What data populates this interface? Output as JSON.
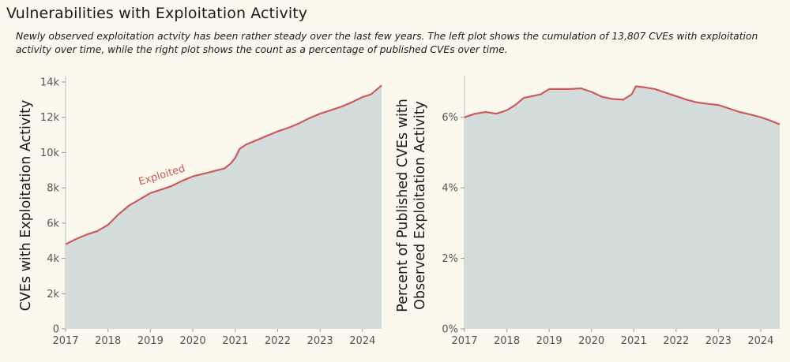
{
  "header": {
    "title": "Vulnerabilities with Exploitation Activity",
    "subtitle": "Newly observed exploitation actvity has been rather steady over the last few years. The left plot shows the cumulation of 13,807 CVEs with exploitation activity over time, while the right plot shows the count as a percentage of published CVEs over time."
  },
  "colors": {
    "line": "#cf5a5e",
    "fill": "#d5dcdc",
    "background": "#fbf8ee"
  },
  "chart_data": [
    {
      "type": "area",
      "ylabel": "CVEs with Exploitation Activity",
      "xlim": [
        2017,
        2024.45
      ],
      "ylim": [
        0,
        14000
      ],
      "x_ticks": [
        2017,
        2018,
        2019,
        2020,
        2021,
        2022,
        2023,
        2024
      ],
      "x_tick_labels": [
        "2017",
        "2018",
        "2019",
        "2020",
        "2021",
        "2022",
        "2023",
        "2024"
      ],
      "y_ticks": [
        0,
        2000,
        4000,
        6000,
        8000,
        10000,
        12000,
        14000
      ],
      "y_tick_labels": [
        "0",
        "2k",
        "4k",
        "6k",
        "8k",
        "10k",
        "12k",
        "14k"
      ],
      "annotation": {
        "text": "Exploited",
        "x": 2018.75,
        "y": 8150
      },
      "series": [
        {
          "x": [
            2017.0,
            2017.25,
            2017.5,
            2017.75,
            2018.0,
            2018.25,
            2018.5,
            2018.75,
            2019.0,
            2019.25,
            2019.5,
            2019.75,
            2020.0,
            2020.25,
            2020.5,
            2020.75,
            2020.9,
            2021.0,
            2021.1,
            2021.25,
            2021.5,
            2021.75,
            2022.0,
            2022.25,
            2022.5,
            2022.75,
            2023.0,
            2023.25,
            2023.5,
            2023.75,
            2024.0,
            2024.2,
            2024.45
          ],
          "y": [
            4800,
            5100,
            5350,
            5550,
            5900,
            6500,
            7000,
            7350,
            7700,
            7900,
            8100,
            8400,
            8650,
            8800,
            8950,
            9100,
            9400,
            9700,
            10200,
            10450,
            10700,
            10950,
            11200,
            11400,
            11650,
            11950,
            12200,
            12400,
            12600,
            12850,
            13150,
            13300,
            13807
          ]
        }
      ]
    },
    {
      "type": "area",
      "ylabel": "Percent of Published CVEs with Observed Exploitation Activity",
      "xlim": [
        2017,
        2024.45
      ],
      "ylim": [
        0,
        7
      ],
      "x_ticks": [
        2017,
        2018,
        2019,
        2020,
        2021,
        2022,
        2023,
        2024
      ],
      "x_tick_labels": [
        "2017",
        "2018",
        "2019",
        "2020",
        "2021",
        "2022",
        "2023",
        "2024"
      ],
      "y_ticks": [
        0,
        2,
        4,
        6
      ],
      "y_tick_labels": [
        "0%",
        "2%",
        "4%",
        "6%"
      ],
      "series": [
        {
          "x": [
            2017.0,
            2017.25,
            2017.5,
            2017.75,
            2018.0,
            2018.2,
            2018.4,
            2018.6,
            2018.8,
            2019.0,
            2019.2,
            2019.5,
            2019.75,
            2020.0,
            2020.25,
            2020.5,
            2020.75,
            2020.95,
            2021.05,
            2021.25,
            2021.5,
            2021.75,
            2022.0,
            2022.25,
            2022.5,
            2022.75,
            2023.0,
            2023.25,
            2023.5,
            2023.75,
            2024.0,
            2024.2,
            2024.45
          ],
          "y": [
            6.0,
            6.1,
            6.15,
            6.1,
            6.2,
            6.35,
            6.55,
            6.6,
            6.65,
            6.8,
            6.8,
            6.8,
            6.82,
            6.72,
            6.58,
            6.52,
            6.5,
            6.65,
            6.88,
            6.85,
            6.8,
            6.7,
            6.6,
            6.5,
            6.42,
            6.38,
            6.35,
            6.25,
            6.15,
            6.08,
            6.0,
            5.92,
            5.8
          ]
        }
      ]
    }
  ]
}
